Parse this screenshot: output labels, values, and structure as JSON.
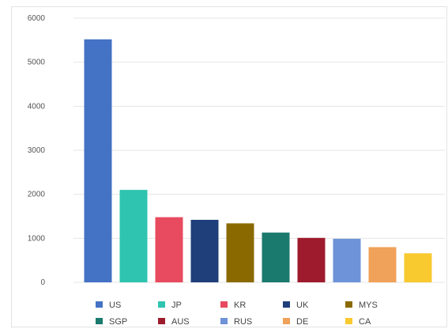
{
  "chart_data": {
    "type": "bar",
    "title": "",
    "xlabel": "",
    "ylabel": "",
    "ylim": [
      0,
      6000
    ],
    "yticks": [
      0,
      1000,
      2000,
      3000,
      4000,
      5000,
      6000
    ],
    "grid": true,
    "legend_position": "bottom",
    "categories": [
      "US",
      "JP",
      "KR",
      "UK",
      "MYS",
      "SGP",
      "AUS",
      "RUS",
      "DE",
      "CA"
    ],
    "values": [
      5520,
      2100,
      1480,
      1420,
      1340,
      1130,
      1010,
      990,
      800,
      660
    ],
    "colors": [
      "#4472c4",
      "#2ec4b0",
      "#e84a5f",
      "#1f3f7a",
      "#8a6a00",
      "#1b7a6e",
      "#9e1b2e",
      "#6f93d8",
      "#f0a15a",
      "#f9c930"
    ]
  }
}
